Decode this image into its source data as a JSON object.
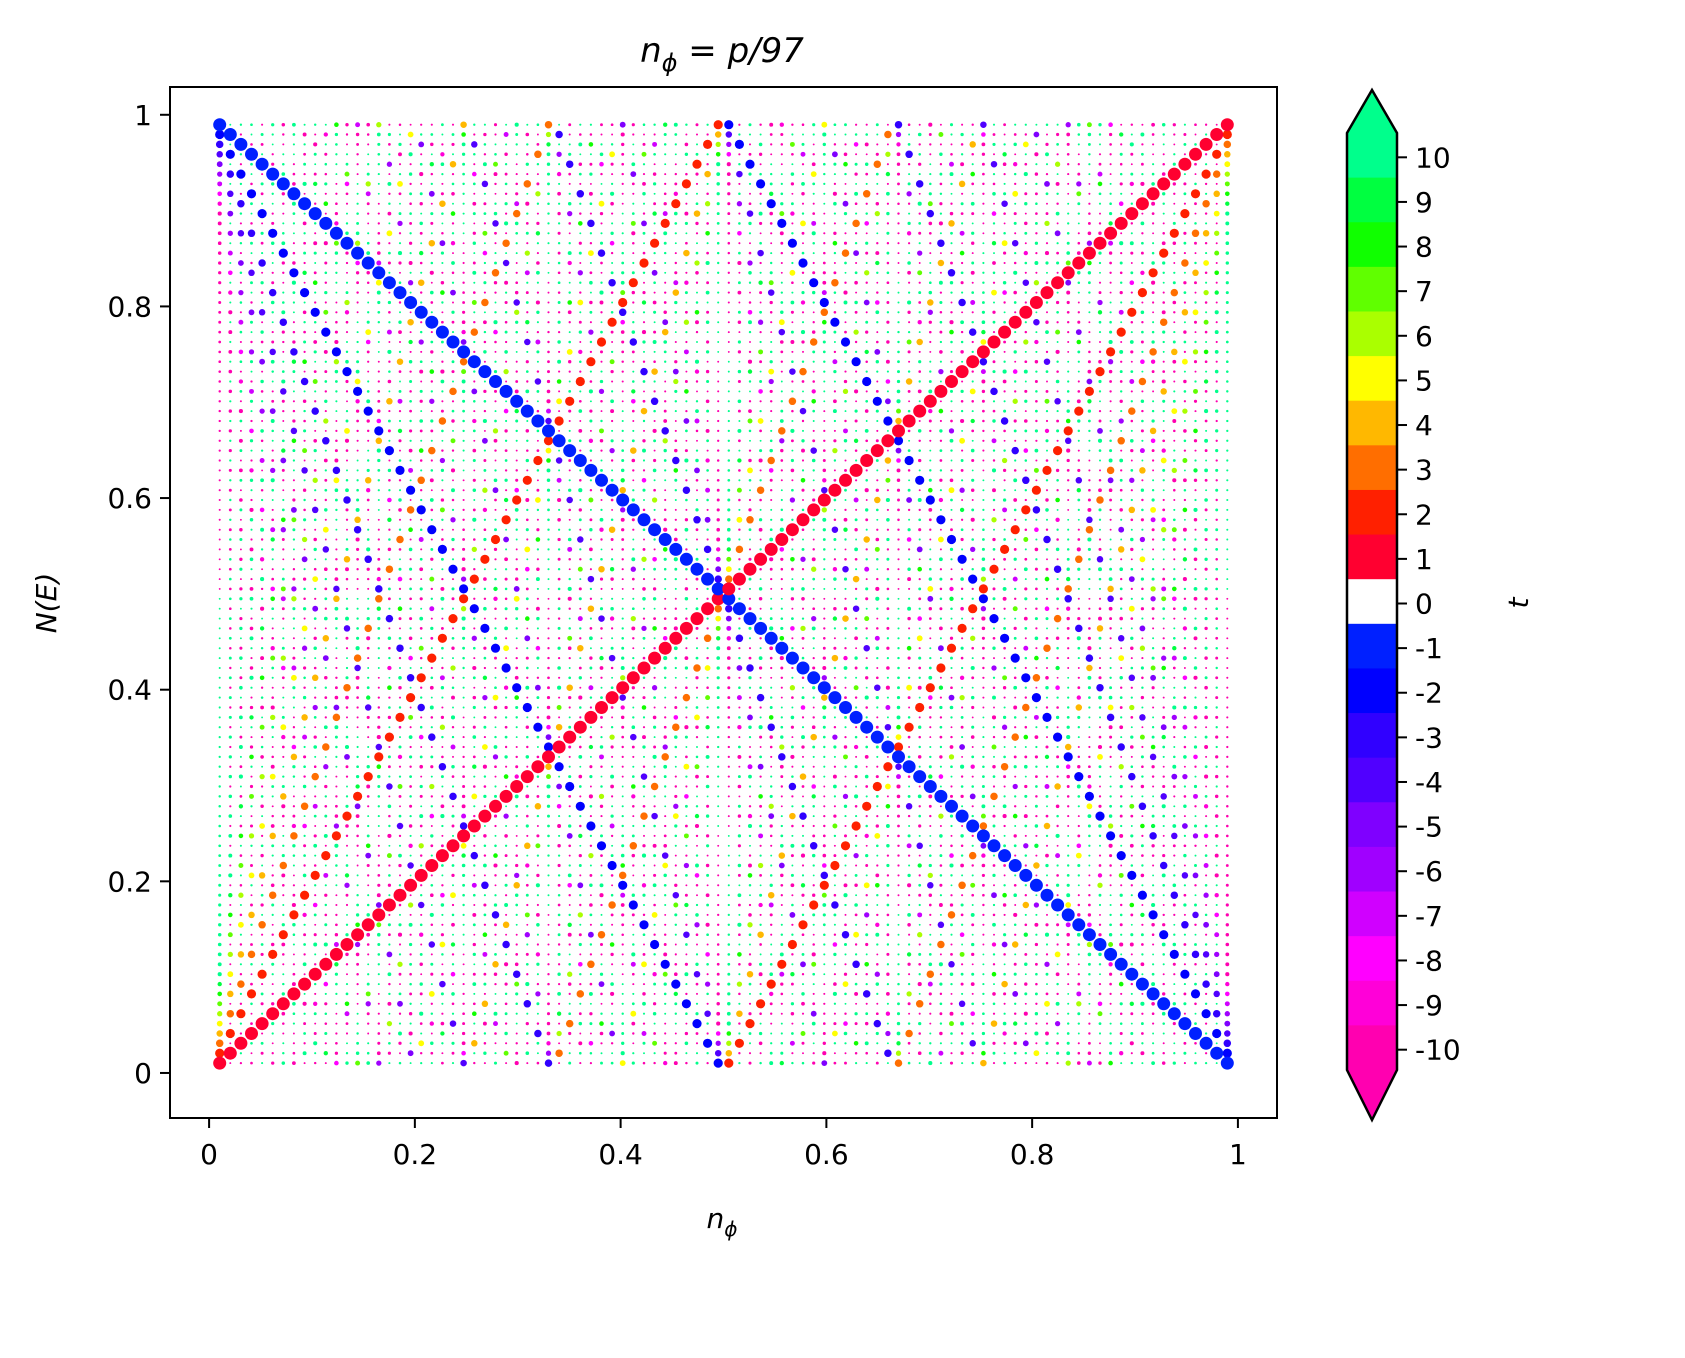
{
  "chart_data": {
    "type": "scatter",
    "title": "n_φ = p/97",
    "title_parts": {
      "lhs": "n",
      "sub": "ϕ",
      "rhs": " = p/97"
    },
    "q": 97,
    "p_range": [
      1,
      96
    ],
    "xlabel": {
      "main": "n",
      "sub": "ϕ"
    },
    "ylabel": "N(E)",
    "xlim": [
      -0.038,
      1.038
    ],
    "ylim": [
      -0.047,
      1.029
    ],
    "xticks": [
      0,
      0.2,
      0.4,
      0.6,
      0.8,
      1
    ],
    "xtick_labels": [
      "0",
      "0.2",
      "0.4",
      "0.6",
      "0.8",
      "1"
    ],
    "yticks": [
      0,
      0.2,
      0.4,
      0.6,
      0.8,
      1
    ],
    "ytick_labels": [
      "0",
      "0.2",
      "0.4",
      "0.6",
      "0.8",
      "1"
    ],
    "grid": false,
    "colorbar": {
      "label": "t",
      "extend": "both",
      "ticks": [
        10,
        9,
        8,
        7,
        6,
        5,
        4,
        3,
        2,
        1,
        0,
        -1,
        -2,
        -3,
        -4,
        -5,
        -6,
        -7,
        -8,
        -9,
        -10
      ],
      "tick_labels": [
        "10",
        "9",
        "8",
        "7",
        "6",
        "5",
        "4",
        "3",
        "2",
        "1",
        "0",
        "-1",
        "-2",
        "-3",
        "-4",
        "-5",
        "-6",
        "-7",
        "-8",
        "-9",
        "-10"
      ],
      "colors": [
        "#00ff8c",
        "#00ff40",
        "#10ff00",
        "#60ff00",
        "#aaff00",
        "#ffff00",
        "#ffb800",
        "#ff6e00",
        "#ff2000",
        "#ff0030",
        "#ffffff",
        "#0020ff",
        "#0000ff",
        "#3000ff",
        "#5000ff",
        "#7f00ff",
        "#a000ff",
        "#d000ff",
        "#ff00ff",
        "#ff00d8",
        "#ff00b0"
      ]
    }
  }
}
